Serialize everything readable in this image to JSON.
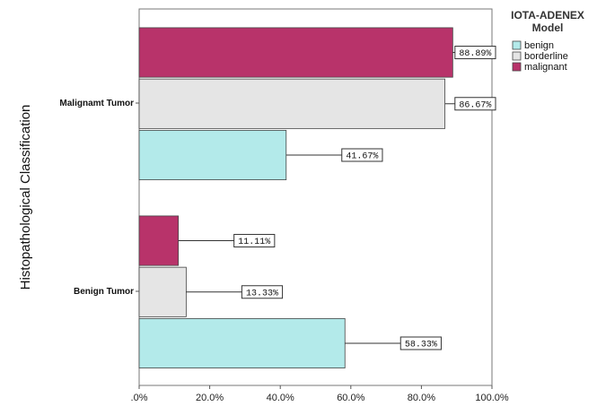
{
  "chart_data": {
    "type": "bar",
    "orientation": "horizontal",
    "title": "",
    "ylabel": "Histopathological Classification",
    "xlabel": "",
    "xlim": [
      0,
      100
    ],
    "x_ticks": [
      ".0%",
      "20.0%",
      "40.0%",
      "60.0%",
      "80.0%",
      "100.0%"
    ],
    "categories": [
      "Malignamt Tumor",
      "Benign Tumor"
    ],
    "legend": {
      "title_lines": [
        "IOTA-ADENEX",
        "Model"
      ],
      "position": "right"
    },
    "series": [
      {
        "name": "malignant",
        "color": "#b8336a",
        "values": [
          88.89,
          11.11
        ],
        "labels": [
          "88.89%",
          "11.11%"
        ]
      },
      {
        "name": "borderline",
        "color": "#e5e5e5",
        "values": [
          86.67,
          13.33
        ],
        "labels": [
          "86.67%",
          "13.33%"
        ]
      },
      {
        "name": "benign",
        "color": "#b3eaea",
        "values": [
          41.67,
          58.33
        ],
        "labels": [
          "41.67%",
          "58.33%"
        ]
      }
    ],
    "legend_order": [
      "benign",
      "borderline",
      "malignant"
    ]
  }
}
